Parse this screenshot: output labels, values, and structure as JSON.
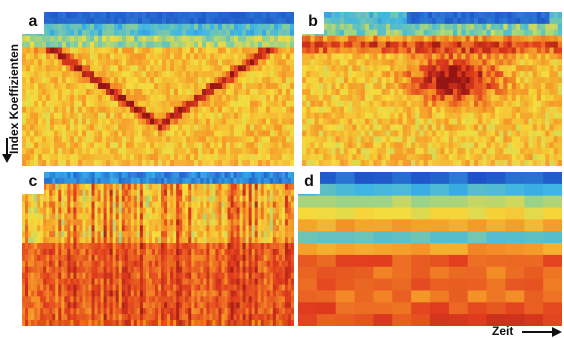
{
  "axes": {
    "ylabel": "Index Koeffizienten",
    "xlabel": "Zeit"
  },
  "chart_data": [
    {
      "type": "heatmap",
      "panel": "a",
      "pattern": "v-shaped high-value band across time, low-value band in top rows"
    },
    {
      "type": "heatmap",
      "panel": "b",
      "pattern": "irregular high-value blob in center, low-value band in top rows"
    },
    {
      "type": "heatmap",
      "panel": "c",
      "pattern": "vertical striations, cooler upper rows, warm lower rows"
    },
    {
      "type": "heatmap",
      "panel": "d",
      "pattern": "smooth horizontal bands, cool top rows and one cool row, warm lower half"
    }
  ],
  "colors": {
    "low": "#1e50c8",
    "mid": "#f0d030",
    "high": "#a01010"
  }
}
